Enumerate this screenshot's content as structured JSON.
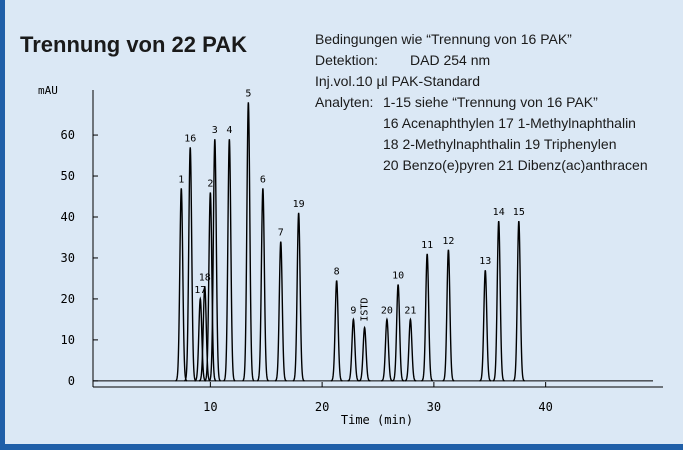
{
  "chart_data": {
    "type": "chromatogram",
    "title": "Trennung von 22 PAK",
    "annotations": [
      {
        "text": "Bedingungen wie “Trennung von 16 PAK”"
      },
      {
        "label": "Detektion:",
        "text": "DAD 254 nm"
      },
      {
        "label": "Inj.vol.:",
        "text": "10 µl PAK-Standard"
      },
      {
        "label": "Analyten:",
        "text": "1-15 siehe “Trennung von 16 PAK”"
      },
      {
        "text": "16 Acenaphthylen 17 1-Methylnaphthalin"
      },
      {
        "text": "18 2-Methylnaphthalin 19 Triphenylen"
      },
      {
        "text": "20 Benzo(e)pyren 21 Dibenz(ac)anthracen"
      }
    ],
    "y_label": "mAU",
    "x_label": "Time (min)",
    "color": "#000000",
    "labels": [
      "1",
      "16",
      "17",
      "18",
      "2",
      "3",
      "4",
      "5",
      "6",
      "7",
      "19",
      "8",
      "9",
      "ISTD",
      "20",
      "10",
      "21",
      "11",
      "12",
      "13",
      "14",
      "15"
    ],
    "x": [
      7.4,
      8.2,
      9.1,
      9.5,
      10.0,
      10.4,
      11.7,
      13.4,
      14.7,
      16.3,
      17.9,
      21.3,
      22.8,
      23.8,
      25.8,
      26.8,
      27.9,
      29.4,
      31.3,
      34.6,
      35.8,
      37.6
    ],
    "values": [
      47,
      57,
      20,
      23,
      46,
      59,
      59,
      68,
      47,
      34,
      41,
      24.5,
      15,
      13,
      15,
      23.5,
      15,
      31,
      32,
      27,
      39,
      39
    ],
    "xlim": [
      -0.5,
      50.5
    ],
    "ylim": [
      -1.5,
      71
    ],
    "xticks": [
      10,
      20,
      30,
      40
    ],
    "yticks": [
      0,
      10,
      20,
      30,
      40,
      50,
      60
    ]
  }
}
